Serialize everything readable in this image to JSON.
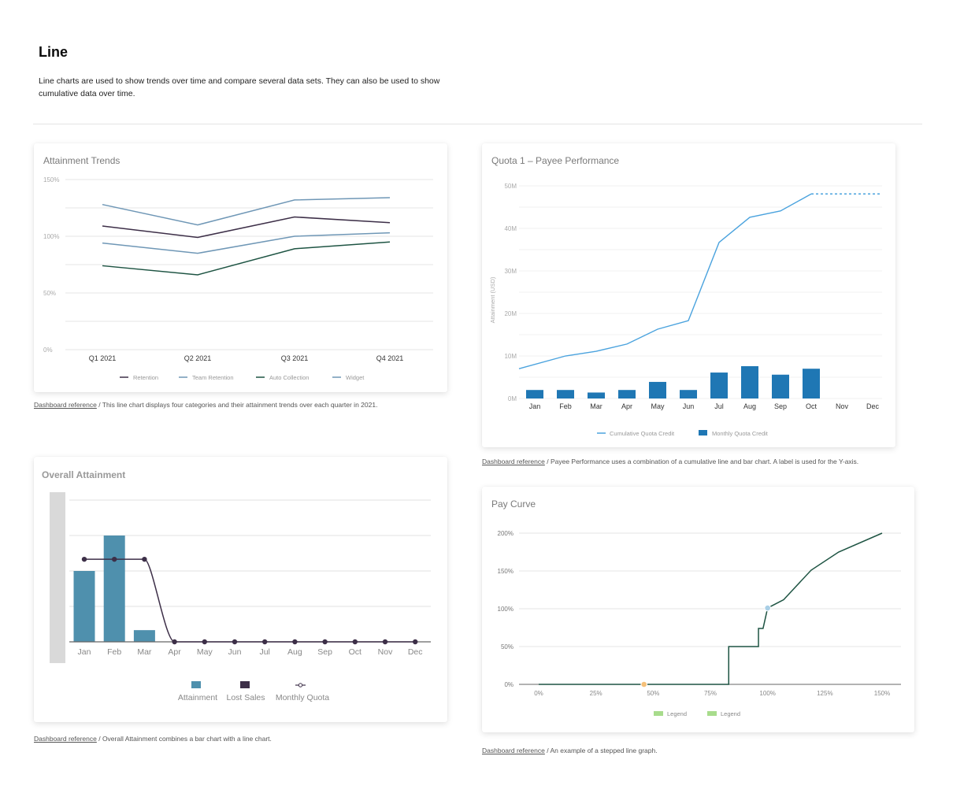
{
  "header": {
    "title": "Line",
    "description": "Line charts are used to show trends over time and compare several data sets. They can also be used to show cumulative data over time."
  },
  "captions": {
    "link_label": "Dashboard reference",
    "attainment_trends": " / This line chart displays four categories and their attainment trends over each quarter in 2021.",
    "payee_performance": " / Payee Performance uses a combination of a cumulative line and bar chart. A label is used for the Y-axis.",
    "overall_attainment": " / Overall Attainment combines a bar chart with a line chart.",
    "pay_curve": " / An example of a stepped line graph."
  },
  "chart_data": [
    {
      "id": "attainment_trends",
      "type": "line",
      "title": "Attainment Trends",
      "xlabel": "",
      "ylabel": "",
      "categories": [
        "Q1 2021",
        "Q2 2021",
        "Q3 2021",
        "Q4 2021"
      ],
      "yticks": [
        "0%",
        "50%",
        "100%",
        "150%"
      ],
      "ylim": [
        0,
        150
      ],
      "grid": true,
      "legend_position": "bottom",
      "series": [
        {
          "name": "Retention",
          "color": "#3d2f48",
          "values": [
            109,
            99,
            117,
            112
          ]
        },
        {
          "name": "Team Retention",
          "color": "#6f97b6",
          "values": [
            94,
            85,
            100,
            103
          ]
        },
        {
          "name": "Auto Collection",
          "color": "#1e5443",
          "values": [
            74,
            66,
            89,
            95
          ]
        },
        {
          "name": "Widget",
          "color": "#6f97b6",
          "values": [
            128,
            110,
            132,
            134
          ]
        }
      ]
    },
    {
      "id": "payee_performance",
      "type": "bar",
      "title": "Quota 1 – Payee Performance",
      "xlabel": "",
      "ylabel": "Attainment (USD)",
      "categories": [
        "Jan",
        "Feb",
        "Mar",
        "Apr",
        "May",
        "Jun",
        "Jul",
        "Aug",
        "Sep",
        "Oct",
        "Nov",
        "Dec"
      ],
      "yticks": [
        "0M",
        "10M",
        "20M",
        "30M",
        "40M",
        "50M"
      ],
      "ylim": [
        0,
        50
      ],
      "grid": true,
      "legend_position": "bottom",
      "series": [
        {
          "name": "Cumulative Quota Credit",
          "type": "line",
          "color": "#4ba3de",
          "values": [
            7.0,
            10.0,
            11.1,
            12.8,
            16.3,
            18.3,
            36.7,
            42.6,
            44.1,
            48.1,
            null,
            null
          ],
          "projection": 48.1
        },
        {
          "name": "Monthly Quota Credit",
          "type": "bar",
          "color": "#1f77b4",
          "values": [
            2.0,
            2.0,
            1.4,
            2.0,
            3.9,
            2.0,
            6.1,
            7.6,
            5.6,
            7.0,
            null,
            null
          ]
        }
      ]
    },
    {
      "id": "overall_attainment",
      "type": "bar",
      "title": "Overall Attainment",
      "xlabel": "",
      "ylabel": "",
      "categories": [
        "Jan",
        "Feb",
        "Mar",
        "Apr",
        "May",
        "Jun",
        "Jul",
        "Aug",
        "Sep",
        "Oct",
        "Nov",
        "Dec"
      ],
      "ylim": [
        0,
        4
      ],
      "grid": true,
      "legend_position": "bottom",
      "series": [
        {
          "name": "Attainment",
          "type": "bar",
          "color": "#4f90ad",
          "values": [
            2,
            3,
            0.33,
            0,
            0,
            0,
            0,
            0,
            0,
            0,
            0,
            0
          ]
        },
        {
          "name": "Lost Sales",
          "type": "bar",
          "color": "#3d2f48",
          "values": [
            0,
            0,
            0,
            0,
            0,
            0,
            0,
            0,
            0,
            0,
            0,
            0
          ]
        },
        {
          "name": "Monthly Quota",
          "type": "line",
          "color": "#3d2f48",
          "values": [
            2.33,
            2.33,
            2.33,
            0,
            0,
            0,
            0,
            0,
            0,
            0,
            0,
            0
          ]
        }
      ]
    },
    {
      "id": "pay_curve",
      "type": "line",
      "title": "Pay Curve",
      "xlabel": "",
      "ylabel": "",
      "xticks": [
        "0%",
        "25%",
        "50%",
        "75%",
        "100%",
        "125%",
        "150%"
      ],
      "yticks": [
        "0%",
        "50%",
        "100%",
        "150%",
        "200%"
      ],
      "xlim": [
        0,
        150
      ],
      "ylim": [
        0,
        200
      ],
      "grid": true,
      "legend_position": "bottom",
      "legend": [
        {
          "name": "Legend",
          "color": "#a8dc8c"
        },
        {
          "name": "Legend",
          "color": "#a8dc8c"
        }
      ],
      "series": [
        {
          "name": "Pay Curve",
          "color": "#1e5443",
          "points": [
            [
              0,
              0
            ],
            [
              83,
              0
            ],
            [
              83,
              50
            ],
            [
              96,
              50
            ],
            [
              96,
              74
            ],
            [
              98,
              74
            ],
            [
              100,
              101
            ],
            [
              107,
              112
            ],
            [
              111,
              125
            ],
            [
              119,
              151
            ],
            [
              131,
              175
            ],
            [
              150,
              200
            ]
          ]
        }
      ],
      "markers": [
        {
          "x": 46,
          "y": 0,
          "color": "#f5c07a"
        },
        {
          "x": 100,
          "y": 101,
          "color": "#a9cfe6"
        }
      ]
    }
  ]
}
